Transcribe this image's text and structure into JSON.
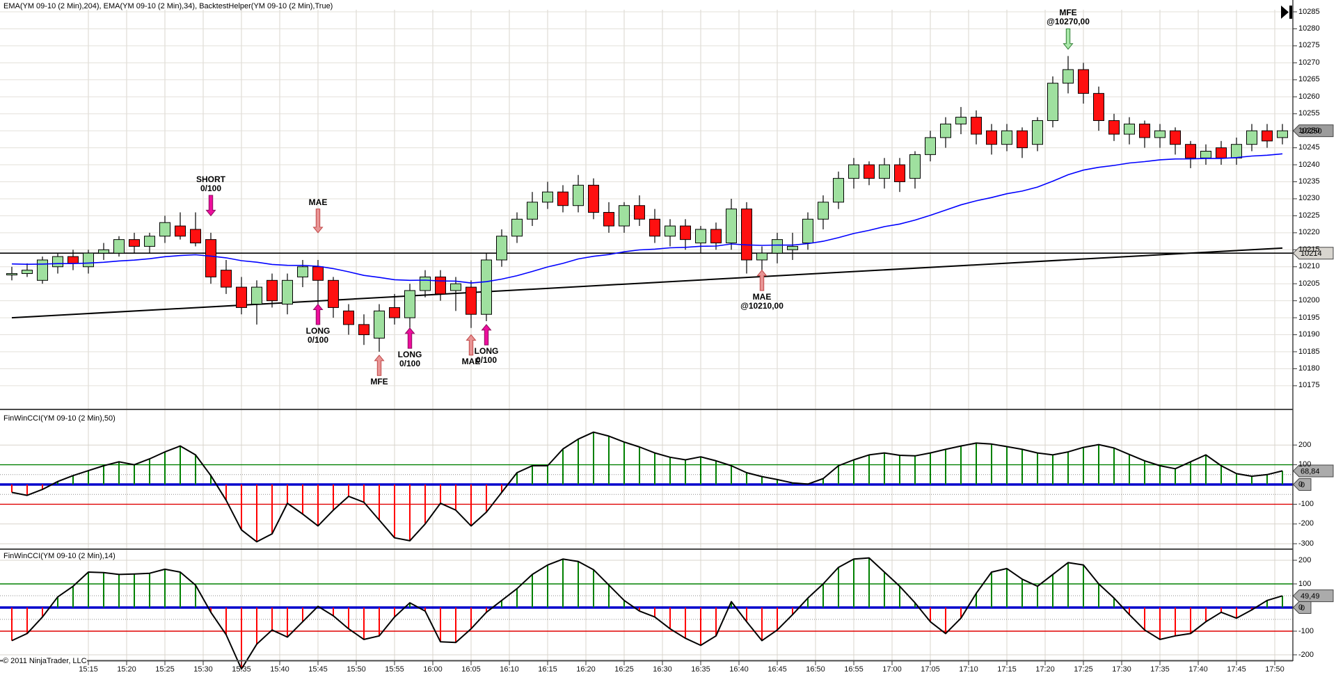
{
  "panels": {
    "price": {
      "title": "EMA(YM 09-10 (2 Min),204), EMA(YM 09-10 (2 Min),34), BacktestHelper(YM 09-10 (2 Min),True)"
    },
    "cci50": {
      "title": "FinWinCCI(YM 09-10 (2 Min),50)"
    },
    "cci14": {
      "title": "FinWinCCI(YM 09-10 (2 Min),14)"
    }
  },
  "footer": {
    "copyright": "© 2011 NinjaTrader, LLC"
  },
  "axes": {
    "price_ticks": [
      "10285",
      "10280",
      "10275",
      "10270",
      "10265",
      "10260",
      "10255",
      "10250",
      "10245",
      "10240",
      "10235",
      "10230",
      "10225",
      "10220",
      "10215",
      "10210",
      "10205",
      "10200",
      "10195",
      "10190",
      "10185",
      "10180",
      "10175"
    ],
    "cci50_ticks": [
      "200",
      "100",
      "0",
      "-100",
      "-200",
      "-300"
    ],
    "cci14_ticks": [
      "200",
      "100",
      "0",
      "-100",
      "-200"
    ],
    "time_labels": [
      "15:15",
      "15:20",
      "15:25",
      "15:30",
      "15:35",
      "15:40",
      "15:45",
      "15:50",
      "15:55",
      "16:00",
      "16:05",
      "16:10",
      "16:15",
      "16:20",
      "16:25",
      "16:30",
      "16:35",
      "16:40",
      "16:45",
      "16:50",
      "16:55",
      "17:00",
      "17:05",
      "17:10",
      "17:15",
      "17:20",
      "17:25",
      "17:30",
      "17:35",
      "17:40",
      "17:45",
      "17:50"
    ]
  },
  "tags": {
    "price": [
      {
        "label": "10250",
        "value": 10250,
        "bg": "#9c9c9c"
      },
      {
        "label": "10214",
        "value": 10214,
        "bg": "#d8d5cf"
      }
    ],
    "cci50": [
      {
        "label": "68,84",
        "value": 68.84,
        "bg": "#ababab"
      },
      {
        "label": "0",
        "value": 0,
        "bg": "#ababab",
        "small": true
      }
    ],
    "cci14": [
      {
        "label": "49,49",
        "value": 49.49,
        "bg": "#ababab"
      },
      {
        "label": "0",
        "value": 0,
        "bg": "#ababab",
        "small": true
      }
    ]
  },
  "colors": {
    "up_fill": "#9fe09f",
    "down_fill": "#fe1010",
    "candle_border": "#000000",
    "ema34": "#0000ff",
    "ema204": "#000000",
    "hline": "#000000",
    "grid_v": "#d8d4cc",
    "grid_h": "#e3e0da",
    "cci_line": "#000000",
    "level_plus100": "#008000",
    "level_minus100": "#e00000",
    "level_zero": "#0000cc",
    "level_dotted": "#8c8c8c",
    "level_gray": "#d8d4cc",
    "separator": "#4a4a4a",
    "pos_bar": "#008000",
    "neg_bar": "#ff0000"
  },
  "chart_data": {
    "type": "candlestick",
    "instrument": "YM 09-10 (2 Min)",
    "time_start": "15:05",
    "interval_min": 2,
    "price_panel": {
      "ylim": [
        10172,
        10286
      ],
      "hline": 10214,
      "ema204_approx": {
        "start": 10195,
        "end": 10215.5
      },
      "ema34": {
        "period": 34,
        "seed": 10211
      },
      "candles_ohlc": [
        [
          10208,
          10210,
          10206,
          10208
        ],
        [
          10208,
          10211,
          10207,
          10209
        ],
        [
          10206,
          10213,
          10205,
          10212
        ],
        [
          10210,
          10214,
          10208,
          10213
        ],
        [
          10213,
          10215,
          10209,
          10211
        ],
        [
          10210,
          10215,
          10208,
          10214
        ],
        [
          10214,
          10217,
          10212,
          10215
        ],
        [
          10214,
          10219,
          10213,
          10218
        ],
        [
          10218,
          10220,
          10214,
          10216
        ],
        [
          10216,
          10220,
          10214,
          10219
        ],
        [
          10219,
          10225,
          10217,
          10223
        ],
        [
          10222,
          10226,
          10218,
          10219
        ],
        [
          10221,
          10226,
          10216,
          10217
        ],
        [
          10218,
          10220,
          10205,
          10207
        ],
        [
          10209,
          10212,
          10202,
          10204
        ],
        [
          10204,
          10207,
          10196,
          10198
        ],
        [
          10199,
          10206,
          10193,
          10204
        ],
        [
          10206,
          10208,
          10198,
          10200
        ],
        [
          10199,
          10208,
          10196,
          10206
        ],
        [
          10207,
          10212,
          10204,
          10210
        ],
        [
          10210,
          10212,
          10199,
          10206
        ],
        [
          10206,
          10207,
          10195,
          10198
        ],
        [
          10197,
          10199,
          10190,
          10193
        ],
        [
          10193,
          10196,
          10187,
          10190
        ],
        [
          10189,
          10199,
          10185,
          10197
        ],
        [
          10198,
          10202,
          10193,
          10195
        ],
        [
          10195,
          10205,
          10192,
          10203
        ],
        [
          10203,
          10209,
          10201,
          10207
        ],
        [
          10207,
          10209,
          10200,
          10202
        ],
        [
          10203,
          10207,
          10197,
          10205
        ],
        [
          10204,
          10206,
          10192,
          10196
        ],
        [
          10196,
          10214,
          10194,
          10212
        ],
        [
          10212,
          10221,
          10210,
          10219
        ],
        [
          10219,
          10226,
          10217,
          10224
        ],
        [
          10224,
          10232,
          10222,
          10229
        ],
        [
          10229,
          10235,
          10227,
          10232
        ],
        [
          10232,
          10234,
          10226,
          10228
        ],
        [
          10228,
          10237,
          10226,
          10234
        ],
        [
          10234,
          10236,
          10224,
          10226
        ],
        [
          10226,
          10229,
          10220,
          10222
        ],
        [
          10222,
          10229,
          10220,
          10228
        ],
        [
          10228,
          10231,
          10222,
          10224
        ],
        [
          10224,
          10227,
          10217,
          10219
        ],
        [
          10219,
          10224,
          10216,
          10222
        ],
        [
          10222,
          10224,
          10215,
          10218
        ],
        [
          10217,
          10222,
          10214,
          10221
        ],
        [
          10221,
          10223,
          10215,
          10217
        ],
        [
          10217,
          10230,
          10215,
          10227
        ],
        [
          10227,
          10229,
          10208,
          10212
        ],
        [
          10212,
          10216,
          10208,
          10214
        ],
        [
          10214,
          10220,
          10211,
          10218
        ],
        [
          10215,
          10220,
          10212,
          10216
        ],
        [
          10217,
          10226,
          10215,
          10224
        ],
        [
          10224,
          10231,
          10221,
          10229
        ],
        [
          10229,
          10238,
          10227,
          10236
        ],
        [
          10236,
          10242,
          10233,
          10240
        ],
        [
          10240,
          10241,
          10234,
          10236
        ],
        [
          10236,
          10242,
          10233,
          10240
        ],
        [
          10240,
          10242,
          10232,
          10235
        ],
        [
          10236,
          10244,
          10233,
          10243
        ],
        [
          10243,
          10250,
          10241,
          10248
        ],
        [
          10248,
          10254,
          10245,
          10252
        ],
        [
          10252,
          10257,
          10249,
          10254
        ],
        [
          10254,
          10256,
          10246,
          10249
        ],
        [
          10250,
          10252,
          10243,
          10246
        ],
        [
          10246,
          10252,
          10244,
          10250
        ],
        [
          10250,
          10251,
          10242,
          10245
        ],
        [
          10246,
          10254,
          10244,
          10253
        ],
        [
          10253,
          10266,
          10251,
          10264
        ],
        [
          10264,
          10272,
          10261,
          10268
        ],
        [
          10268,
          10270,
          10258,
          10261
        ],
        [
          10261,
          10263,
          10250,
          10253
        ],
        [
          10253,
          10255,
          10247,
          10249
        ],
        [
          10249,
          10254,
          10246,
          10252
        ],
        [
          10252,
          10253,
          10245,
          10248
        ],
        [
          10248,
          10252,
          10245,
          10250
        ],
        [
          10250,
          10251,
          10243,
          10246
        ],
        [
          10246,
          10247,
          10239,
          10242
        ],
        [
          10242,
          10246,
          10240,
          10244
        ],
        [
          10245,
          10247,
          10240,
          10242
        ],
        [
          10242,
          10248,
          10240,
          10246
        ],
        [
          10246,
          10252,
          10244,
          10250
        ],
        [
          10250,
          10252,
          10245,
          10247
        ],
        [
          10248,
          10252,
          10246,
          10250
        ]
      ],
      "markers": [
        {
          "bar": 13,
          "lines": [
            "SHORT",
            "0/100"
          ],
          "pos": "above",
          "arrow": {
            "from": 10231,
            "to": 10225,
            "dir": "down",
            "fill": "#ed0e9c",
            "stroke": "#8b0e5e"
          }
        },
        {
          "bar": 20,
          "lines": [
            "MAE"
          ],
          "pos": "above",
          "arrow": {
            "from": 10227,
            "to": 10220,
            "dir": "down",
            "fill": "#e89494",
            "stroke": "#c04848"
          }
        },
        {
          "bar": 20,
          "lines": [
            "LONG",
            "0/100"
          ],
          "pos": "below",
          "arrow": {
            "from": 10193,
            "to": 10199,
            "dir": "up",
            "fill": "#ed0e9c",
            "stroke": "#8b0e5e"
          }
        },
        {
          "bar": 24,
          "lines": [
            "MFE"
          ],
          "pos": "below",
          "arrow": {
            "from": 10178,
            "to": 10184,
            "dir": "up",
            "fill": "#e89494",
            "stroke": "#c04848"
          }
        },
        {
          "bar": 26,
          "lines": [
            "LONG",
            "0/100"
          ],
          "pos": "below",
          "arrow": {
            "from": 10186,
            "to": 10192,
            "dir": "up",
            "fill": "#ed0e9c",
            "stroke": "#8b0e5e"
          }
        },
        {
          "bar": 30,
          "lines": [
            "MAE"
          ],
          "pos": "below",
          "arrow": {
            "from": 10184,
            "to": 10190,
            "dir": "up",
            "fill": "#e89494",
            "stroke": "#c04848"
          }
        },
        {
          "bar": 31,
          "lines": [
            "LONG",
            "0/100"
          ],
          "pos": "below",
          "arrow": {
            "from": 10187,
            "to": 10193,
            "dir": "up",
            "fill": "#ed0e9c",
            "stroke": "#8b0e5e"
          }
        },
        {
          "bar": 49,
          "lines": [
            "MAE",
            "@10210,00"
          ],
          "pos": "below",
          "arrow": {
            "from": 10203,
            "to": 10209,
            "dir": "up",
            "fill": "#e89494",
            "stroke": "#c04848"
          }
        },
        {
          "bar": 69,
          "lines": [
            "MFE",
            "@10270,00"
          ],
          "pos": "above",
          "arrow": {
            "from": 10280,
            "to": 10274,
            "dir": "down",
            "fill": "#a9e8a9",
            "stroke": "#2f7d33"
          }
        }
      ]
    },
    "cci50_panel": {
      "type": "line+histogram",
      "last_value": 68.84,
      "levels": {
        "solid_gray": [
          200,
          -200,
          -300
        ],
        "green": 100,
        "red": -100,
        "zero": 0,
        "dotted": [
          50,
          -50
        ]
      },
      "values": [
        -40,
        -55,
        -25,
        15,
        45,
        70,
        95,
        115,
        100,
        130,
        165,
        195,
        150,
        45,
        -80,
        -230,
        -290,
        -250,
        -95,
        -150,
        -210,
        -130,
        -60,
        -90,
        -180,
        -270,
        -285,
        -200,
        -95,
        -130,
        -210,
        -140,
        -40,
        60,
        95,
        95,
        180,
        230,
        265,
        245,
        215,
        190,
        160,
        138,
        125,
        140,
        120,
        95,
        60,
        40,
        25,
        8,
        2,
        30,
        95,
        125,
        150,
        160,
        148,
        145,
        160,
        178,
        195,
        210,
        205,
        192,
        178,
        160,
        150,
        165,
        188,
        202,
        185,
        152,
        120,
        95,
        80,
        115,
        150,
        95,
        55,
        42,
        50,
        68.84
      ]
    },
    "cci14_panel": {
      "type": "line+histogram",
      "last_value": 49.49,
      "levels": {
        "solid_gray": [
          200,
          -200
        ],
        "green": 100,
        "red": -100,
        "zero": 0,
        "dotted": [
          50,
          -50
        ]
      },
      "values": [
        -140,
        -110,
        -40,
        45,
        90,
        150,
        148,
        140,
        142,
        145,
        162,
        150,
        95,
        -20,
        -115,
        -260,
        -155,
        -95,
        -125,
        -60,
        5,
        -35,
        -90,
        -135,
        -120,
        -40,
        20,
        -15,
        -145,
        -148,
        -90,
        -20,
        30,
        80,
        140,
        180,
        205,
        195,
        160,
        95,
        30,
        -15,
        -40,
        -90,
        -130,
        -160,
        -120,
        25,
        -60,
        -140,
        -95,
        -30,
        40,
        100,
        170,
        205,
        210,
        150,
        90,
        20,
        -60,
        -110,
        -45,
        60,
        150,
        165,
        120,
        90,
        140,
        190,
        180,
        100,
        40,
        -30,
        -95,
        -135,
        -120,
        -110,
        -60,
        -20,
        -45,
        -10,
        30,
        49.49
      ]
    }
  }
}
